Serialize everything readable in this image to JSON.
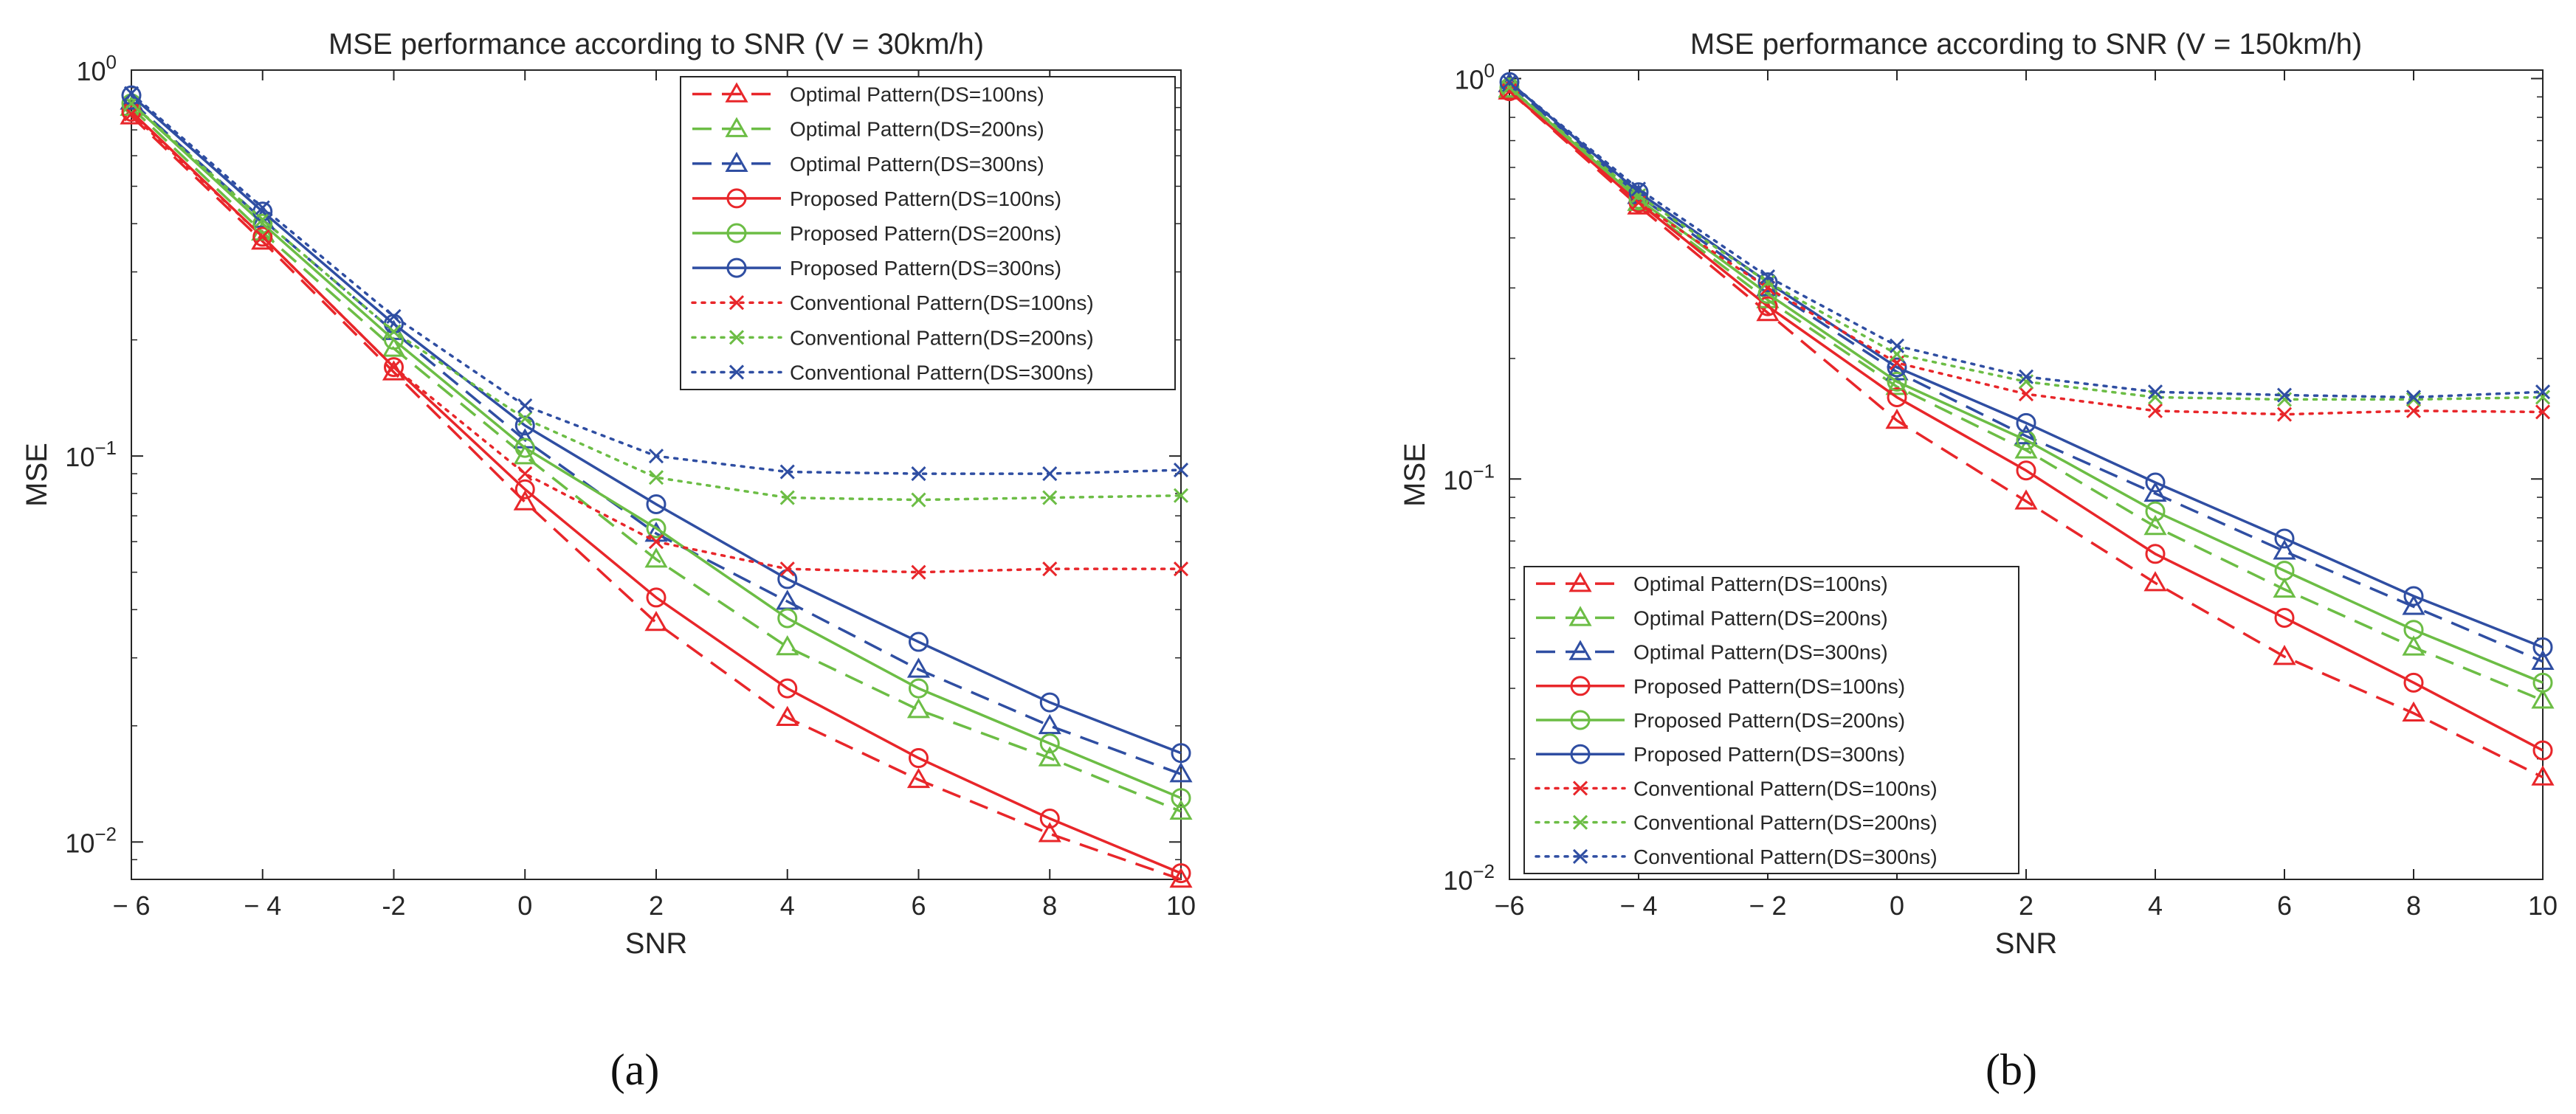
{
  "chart_data": [
    {
      "type": "line",
      "title": "MSE performance according to SNR (V = 30km/h)",
      "panel_label": "(a)",
      "xlabel": "SNR",
      "ylabel": "MSE",
      "yscale": "log",
      "xlim": [
        -6,
        10
      ],
      "ylim": [
        0.008,
        1
      ],
      "x_ticks": [
        -6,
        -4,
        -2,
        0,
        2,
        4,
        6,
        8,
        10
      ],
      "x_tick_labels": [
        "− 6",
        "− 4",
        "-2",
        "0",
        "2",
        "4",
        "6",
        "8",
        "10"
      ],
      "y_ticks": [
        {
          "value": 1,
          "base": "10",
          "exp": "0"
        },
        {
          "value": 0.1,
          "base": "10",
          "exp": "−1"
        },
        {
          "value": 0.01,
          "base": "10",
          "exp": "−2"
        }
      ],
      "legend_position": "top-right",
      "x": [
        -6,
        -4,
        -2,
        0,
        2,
        4,
        6,
        8,
        10
      ],
      "series": [
        {
          "name": "Optimal Pattern(DS=100ns)",
          "color": "#e8262a",
          "dash": "dashed",
          "marker": "triangle",
          "values": [
            0.76,
            0.36,
            0.165,
            0.076,
            0.037,
            0.021,
            0.0145,
            0.0105,
            0.008
          ]
        },
        {
          "name": "Optimal Pattern(DS=200ns)",
          "color": "#6cbd45",
          "dash": "dashed",
          "marker": "triangle",
          "values": [
            0.8,
            0.38,
            0.19,
            0.1,
            0.054,
            0.032,
            0.022,
            0.0165,
            0.012
          ]
        },
        {
          "name": "Optimal Pattern(DS=300ns)",
          "color": "#2f4ea2",
          "dash": "dashed",
          "marker": "triangle",
          "values": [
            0.83,
            0.41,
            0.21,
            0.11,
            0.063,
            0.042,
            0.028,
            0.02,
            0.015
          ]
        },
        {
          "name": "Proposed Pattern(DS=100ns)",
          "color": "#e8262a",
          "dash": "solid",
          "marker": "circle",
          "values": [
            0.78,
            0.37,
            0.17,
            0.082,
            0.043,
            0.025,
            0.0165,
            0.0115,
            0.0083
          ]
        },
        {
          "name": "Proposed Pattern(DS=200ns)",
          "color": "#6cbd45",
          "dash": "solid",
          "marker": "circle",
          "values": [
            0.82,
            0.4,
            0.2,
            0.105,
            0.065,
            0.038,
            0.025,
            0.018,
            0.013
          ]
        },
        {
          "name": "Proposed Pattern(DS=300ns)",
          "color": "#2f4ea2",
          "dash": "solid",
          "marker": "circle",
          "values": [
            0.86,
            0.43,
            0.22,
            0.12,
            0.075,
            0.048,
            0.033,
            0.023,
            0.017
          ]
        },
        {
          "name": "Conventional Pattern(DS=100ns)",
          "color": "#e8262a",
          "dash": "dotted",
          "marker": "x",
          "values": [
            0.77,
            0.37,
            0.17,
            0.09,
            0.06,
            0.051,
            0.05,
            0.051,
            0.051
          ]
        },
        {
          "name": "Conventional Pattern(DS=200ns)",
          "color": "#6cbd45",
          "dash": "dotted",
          "marker": "x",
          "values": [
            0.82,
            0.41,
            0.21,
            0.125,
            0.088,
            0.078,
            0.077,
            0.078,
            0.079
          ]
        },
        {
          "name": "Conventional Pattern(DS=300ns)",
          "color": "#2f4ea2",
          "dash": "dotted",
          "marker": "x",
          "values": [
            0.87,
            0.44,
            0.23,
            0.135,
            0.1,
            0.091,
            0.09,
            0.09,
            0.092
          ]
        }
      ]
    },
    {
      "type": "line",
      "title": "MSE performance according to SNR (V = 150km/h)",
      "panel_label": "(b)",
      "xlabel": "SNR",
      "ylabel": "MSE",
      "yscale": "log",
      "xlim": [
        -6,
        10
      ],
      "ylim": [
        0.01,
        1.05
      ],
      "x_ticks": [
        -6,
        -4,
        -2,
        0,
        2,
        4,
        6,
        8,
        10
      ],
      "x_tick_labels": [
        "−6",
        "− 4",
        "− 2",
        "0",
        "2",
        "4",
        "6",
        "8",
        "10"
      ],
      "y_ticks": [
        {
          "value": 1,
          "base": "10",
          "exp": "0"
        },
        {
          "value": 0.1,
          "base": "10",
          "exp": "−1"
        },
        {
          "value": 0.01,
          "base": "10",
          "exp": "−2"
        }
      ],
      "legend_position": "bottom-left",
      "x": [
        -6,
        -4,
        -2,
        0,
        2,
        4,
        6,
        8,
        10
      ],
      "series": [
        {
          "name": "Optimal Pattern(DS=100ns)",
          "color": "#e8262a",
          "dash": "dashed",
          "marker": "triangle",
          "values": [
            0.93,
            0.48,
            0.26,
            0.14,
            0.088,
            0.055,
            0.036,
            0.026,
            0.018
          ]
        },
        {
          "name": "Optimal Pattern(DS=200ns)",
          "color": "#6cbd45",
          "dash": "dashed",
          "marker": "triangle",
          "values": [
            0.94,
            0.49,
            0.28,
            0.17,
            0.118,
            0.076,
            0.053,
            0.038,
            0.028
          ]
        },
        {
          "name": "Optimal Pattern(DS=300ns)",
          "color": "#2f4ea2",
          "dash": "dashed",
          "marker": "triangle",
          "values": [
            0.97,
            0.51,
            0.3,
            0.185,
            0.128,
            0.092,
            0.066,
            0.048,
            0.035
          ]
        },
        {
          "name": "Proposed Pattern(DS=100ns)",
          "color": "#e8262a",
          "dash": "solid",
          "marker": "circle",
          "values": [
            0.93,
            0.49,
            0.27,
            0.16,
            0.105,
            0.065,
            0.045,
            0.031,
            0.021
          ]
        },
        {
          "name": "Proposed Pattern(DS=200ns)",
          "color": "#6cbd45",
          "dash": "solid",
          "marker": "circle",
          "values": [
            0.95,
            0.5,
            0.29,
            0.175,
            0.125,
            0.083,
            0.059,
            0.042,
            0.031
          ]
        },
        {
          "name": "Proposed Pattern(DS=300ns)",
          "color": "#2f4ea2",
          "dash": "solid",
          "marker": "circle",
          "values": [
            0.98,
            0.52,
            0.31,
            0.19,
            0.138,
            0.098,
            0.071,
            0.051,
            0.038
          ]
        },
        {
          "name": "Conventional Pattern(DS=100ns)",
          "color": "#e8262a",
          "dash": "dotted",
          "marker": "x",
          "values": [
            0.93,
            0.49,
            0.3,
            0.195,
            0.163,
            0.148,
            0.145,
            0.148,
            0.147
          ]
        },
        {
          "name": "Conventional Pattern(DS=200ns)",
          "color": "#6cbd45",
          "dash": "dotted",
          "marker": "x",
          "values": [
            0.95,
            0.51,
            0.31,
            0.205,
            0.175,
            0.16,
            0.158,
            0.158,
            0.16
          ]
        },
        {
          "name": "Conventional Pattern(DS=300ns)",
          "color": "#2f4ea2",
          "dash": "dotted",
          "marker": "x",
          "values": [
            0.98,
            0.53,
            0.32,
            0.215,
            0.18,
            0.165,
            0.162,
            0.16,
            0.165
          ]
        }
      ]
    }
  ]
}
